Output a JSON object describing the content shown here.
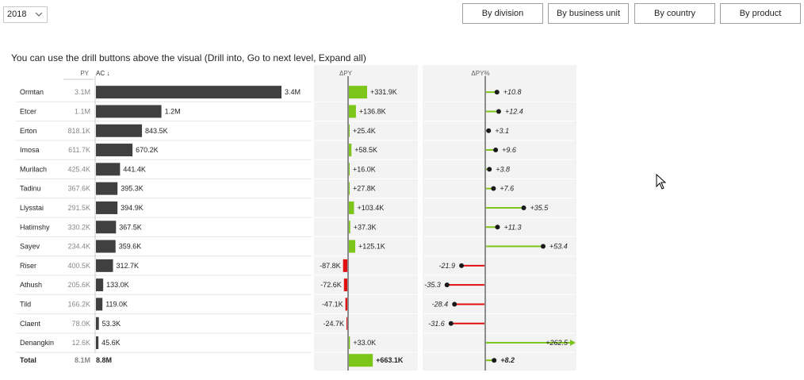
{
  "filter": {
    "year": "2018",
    "chevron_icon": "chevron-down-icon"
  },
  "buttons": [
    {
      "label": "By division"
    },
    {
      "label": "By business unit"
    },
    {
      "label": "By country"
    },
    {
      "label": "By product"
    }
  ],
  "instruction": "You can use the drill buttons above the visual (Drill into, Go to next level, Expand all)",
  "colors": {
    "ac_bar": "#404040",
    "positive": "#7ec51a",
    "negative": "#e01010",
    "axis": "#8c8c8c",
    "panel_bg": "#f3f3f3"
  },
  "chart_data": {
    "type": "bar",
    "columns": {
      "py": "PY",
      "ac": "AC ↓",
      "dpy": "ΔPY",
      "dpy_pct": "ΔPY%"
    },
    "categories": [
      "Ormtan",
      "Etcer",
      "Erton",
      "Imosa",
      "Murilach",
      "Tadinu",
      "Llysstai",
      "Hatimshy",
      "Sayev",
      "Riser",
      "Athush",
      "Tild",
      "Claent",
      "Denangkin"
    ],
    "py_labels": [
      "3.1M",
      "1.1M",
      "818.1K",
      "611.7K",
      "425.4K",
      "367.6K",
      "291.5K",
      "330.2K",
      "234.4K",
      "400.5K",
      "205.6K",
      "166.2K",
      "78.0K",
      "12.6K"
    ],
    "ac_labels": [
      "3.4M",
      "1.2M",
      "843.5K",
      "670.2K",
      "441.4K",
      "395.3K",
      "394.9K",
      "367.5K",
      "359.6K",
      "312.7K",
      "133.0K",
      "119.0K",
      "53.3K",
      "45.6K"
    ],
    "ac_values": [
      3400000,
      1200000,
      843500,
      670200,
      441400,
      395300,
      394900,
      367500,
      359600,
      312700,
      133000,
      119000,
      53300,
      45600
    ],
    "dpy_labels": [
      "+331.9K",
      "+136.8K",
      "+25.4K",
      "+58.5K",
      "+16.0K",
      "+27.8K",
      "+103.4K",
      "+37.3K",
      "+125.1K",
      "-87.8K",
      "-72.6K",
      "-47.1K",
      "-24.7K",
      "+33.0K"
    ],
    "dpy_values": [
      331900,
      136800,
      25400,
      58500,
      16000,
      27800,
      103400,
      37300,
      125100,
      -87800,
      -72600,
      -47100,
      -24700,
      33000
    ],
    "pct_labels": [
      "+10.8",
      "+12.4",
      "+3.1",
      "+9.6",
      "+3.8",
      "+7.6",
      "+35.5",
      "+11.3",
      "+53.4",
      "-21.9",
      "-35.3",
      "-28.4",
      "-31.6",
      "+262.5"
    ],
    "pct_values": [
      10.8,
      12.4,
      3.1,
      9.6,
      3.8,
      7.6,
      35.5,
      11.3,
      53.4,
      -21.9,
      -35.3,
      -28.4,
      -31.6,
      262.5
    ],
    "total": {
      "label": "Total",
      "py": "8.1M",
      "ac": "8.8M",
      "dpy": "+663.1K",
      "dpy_value": 663100,
      "pct": "+8.2",
      "pct_value": 8.2
    }
  }
}
